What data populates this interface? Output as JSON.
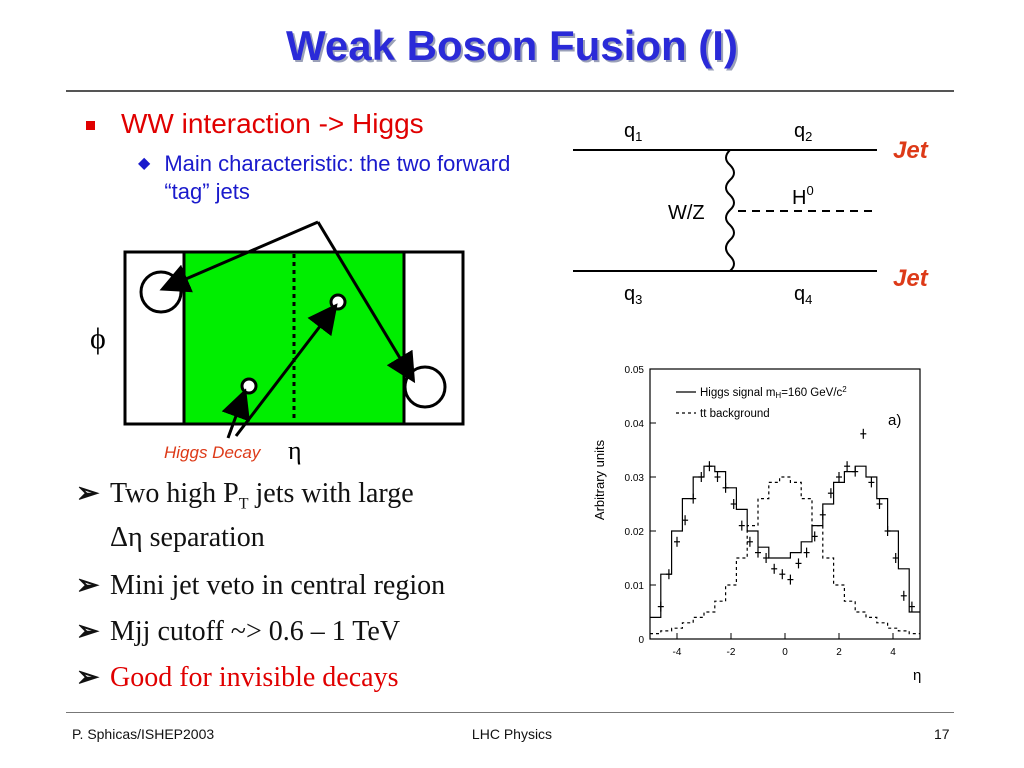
{
  "slide": {
    "title": "Weak Boson Fusion (I)",
    "bullet1": "WW interaction -> Higgs",
    "bullet2": "Main characteristic: the two forward “tag” jets",
    "points": [
      {
        "pre": "Two high P",
        "sub": "T",
        "post": " jets with large"
      },
      {
        "pre": "Δη  separation"
      },
      {
        "pre": "Mini jet veto in central region"
      },
      {
        "pre": "Mjj cutoff ~> 0.6 – 1 TeV"
      },
      {
        "pre": "Good for invisible decays"
      }
    ],
    "colors": {
      "title": "#2a2ad8",
      "red": "#e00000",
      "blue": "#1a1acc",
      "green": "#00ee00"
    }
  },
  "detector": {
    "phi_label": "ϕ",
    "eta_label": "η",
    "decay_label": "Higgs Decay"
  },
  "feynman": {
    "q1": "q",
    "q1_sub": "1",
    "q2": "q",
    "q2_sub": "2",
    "q3": "q",
    "q3_sub": "3",
    "q4": "q",
    "q4_sub": "4",
    "boson": "W/Z",
    "higgs": "H",
    "higgs_sup": "0",
    "jet_top": "Jet",
    "jet_bottom": "Jet"
  },
  "plot": {
    "ylabel": "Arbitrary units",
    "xlabel": "η",
    "panel_label": "a)",
    "legend_higgs": "Higgs signal m",
    "legend_higgs_sub": "H",
    "legend_higgs_tail": "=160 GeV/c",
    "legend_higgs_sup": "2",
    "legend_bg": "tt background",
    "y_ticks": [
      "0",
      "0.01",
      "0.02",
      "0.03",
      "0.04",
      "0.05"
    ],
    "x_ticks": [
      "-4",
      "-2",
      "0",
      "2",
      "4"
    ]
  },
  "chart_data": {
    "type": "line",
    "xlabel": "η",
    "ylabel": "Arbitrary units",
    "xlim": [
      -5,
      5
    ],
    "ylim": [
      0,
      0.05
    ],
    "series": [
      {
        "name": "Higgs signal mH=160 GeV/c2",
        "style": "solid-step",
        "x": [
          -4.8,
          -4.4,
          -4.0,
          -3.6,
          -3.2,
          -2.8,
          -2.4,
          -2.0,
          -1.6,
          -1.2,
          -0.8,
          -0.4,
          0.0,
          0.4,
          0.8,
          1.2,
          1.6,
          2.0,
          2.4,
          2.8,
          3.2,
          3.6,
          4.0,
          4.4,
          4.8
        ],
        "y": [
          0.004,
          0.012,
          0.02,
          0.026,
          0.03,
          0.032,
          0.031,
          0.028,
          0.024,
          0.02,
          0.017,
          0.015,
          0.015,
          0.016,
          0.018,
          0.021,
          0.025,
          0.029,
          0.031,
          0.032,
          0.03,
          0.026,
          0.02,
          0.013,
          0.005
        ]
      },
      {
        "name": "tt background",
        "style": "dashed-step",
        "x": [
          -4.8,
          -4.4,
          -4.0,
          -3.6,
          -3.2,
          -2.8,
          -2.4,
          -2.0,
          -1.6,
          -1.2,
          -0.8,
          -0.4,
          0.0,
          0.4,
          0.8,
          1.2,
          1.6,
          2.0,
          2.4,
          2.8,
          3.2,
          3.6,
          4.0,
          4.4,
          4.8
        ],
        "y": [
          0.001,
          0.0015,
          0.002,
          0.003,
          0.004,
          0.005,
          0.007,
          0.01,
          0.015,
          0.021,
          0.026,
          0.029,
          0.03,
          0.029,
          0.026,
          0.021,
          0.015,
          0.01,
          0.007,
          0.005,
          0.004,
          0.003,
          0.002,
          0.0015,
          0.001
        ]
      },
      {
        "name": "points",
        "style": "markers",
        "x": [
          -4.6,
          -4.3,
          -4.0,
          -3.7,
          -3.4,
          -3.1,
          -2.8,
          -2.5,
          -2.2,
          -1.9,
          -1.6,
          -1.3,
          -1.0,
          -0.7,
          -0.4,
          -0.1,
          0.2,
          0.5,
          0.8,
          1.1,
          1.4,
          1.7,
          2.0,
          2.3,
          2.6,
          2.9,
          3.2,
          3.5,
          3.8,
          4.1,
          4.4,
          4.7
        ],
        "y": [
          0.006,
          0.012,
          0.018,
          0.022,
          0.026,
          0.03,
          0.032,
          0.03,
          0.028,
          0.025,
          0.021,
          0.018,
          0.016,
          0.015,
          0.013,
          0.012,
          0.011,
          0.014,
          0.016,
          0.019,
          0.023,
          0.027,
          0.03,
          0.032,
          0.031,
          0.038,
          0.029,
          0.025,
          0.02,
          0.015,
          0.008,
          0.006
        ]
      }
    ]
  },
  "footer": {
    "left": "P. Sphicas/ISHEP2003",
    "center": "LHC Physics",
    "right": "17"
  }
}
